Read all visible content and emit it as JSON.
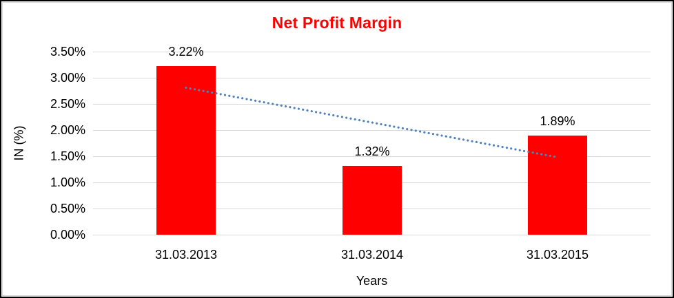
{
  "chart_data": {
    "type": "bar",
    "title": "Net Profit Margin",
    "title_color": "#FF0000",
    "categories": [
      "31.03.2013",
      "31.03.2014",
      "31.03.2015"
    ],
    "values": [
      3.22,
      1.32,
      1.89
    ],
    "data_labels": [
      "3.22%",
      "1.32%",
      "1.89%"
    ],
    "xlabel": "Years",
    "ylabel": "IN (%)",
    "ylim": [
      0,
      3.5
    ],
    "ytick_step": 0.5,
    "ytick_labels_top_to_bottom": [
      "3.50%",
      "3.00%",
      "2.50%",
      "2.00%",
      "1.50%",
      "1.00%",
      "0.50%",
      "0.00%"
    ],
    "grid": true,
    "legend": "none",
    "bar_color": "#FF0000",
    "gridline_color": "#D9D9D9",
    "trendline": {
      "type": "linear",
      "style": "dotted",
      "color": "#4F81BD",
      "start_category": "31.03.2013",
      "start_value": 2.81,
      "end_category": "31.03.2015",
      "end_value": 1.48
    }
  }
}
